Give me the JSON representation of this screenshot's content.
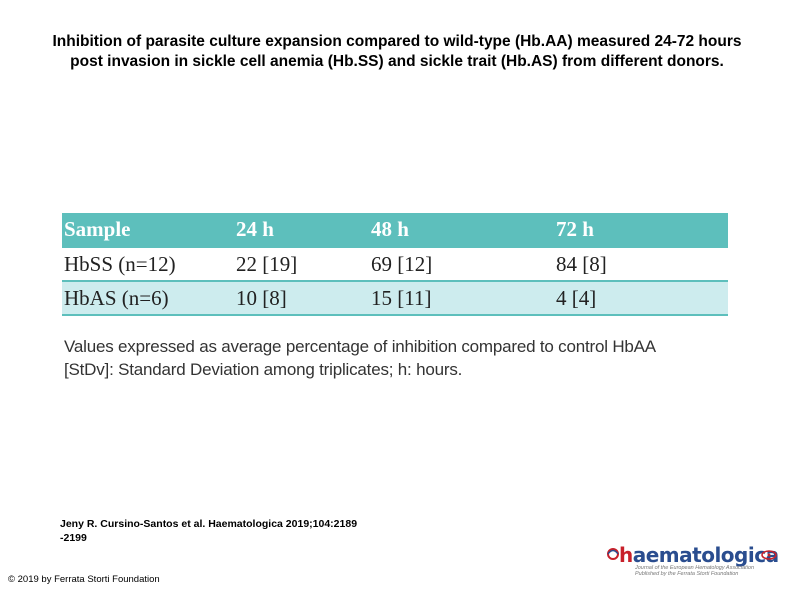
{
  "title": {
    "line1": "Inhibition of parasite culture expansion compared to wild-type (Hb.AA) measured 24-72 hours",
    "line2": "post invasion in sickle cell anemia (Hb.SS) and sickle trait (Hb.AS) from different donors."
  },
  "table": {
    "headers": [
      "Sample",
      "24 h",
      "48 h",
      "72 h"
    ],
    "rows": [
      [
        "HbSS (n=12)",
        "22 [19]",
        "69 [12]",
        "84 [8]"
      ],
      [
        "HbAS (n=6)",
        "10 [8]",
        "15 [11]",
        "4 [4]"
      ]
    ],
    "note_line1": "Values expressed as average percentage of inhibition compared to control HbAA",
    "note_line2": "[StDv]: Standard Deviation among triplicates; h: hours."
  },
  "citation": {
    "line1": "Jeny R. Cursino-Santos et al. Haematologica 2019;104:2189",
    "line2": "-2199"
  },
  "copyright": "© 2019 by Ferrata Storti Foundation",
  "logo": {
    "brand_h": "h",
    "brand_rest": "aematologica",
    "tag_line1": "Journal of the European Hematology Association",
    "tag_line2": "Published by the Ferrata Storti Foundation"
  },
  "colors": {
    "header_bg": "#5dbfbc",
    "alt_row_bg": "#cdecee",
    "logo_blue": "#2a4d8f",
    "logo_red": "#c8202a"
  }
}
